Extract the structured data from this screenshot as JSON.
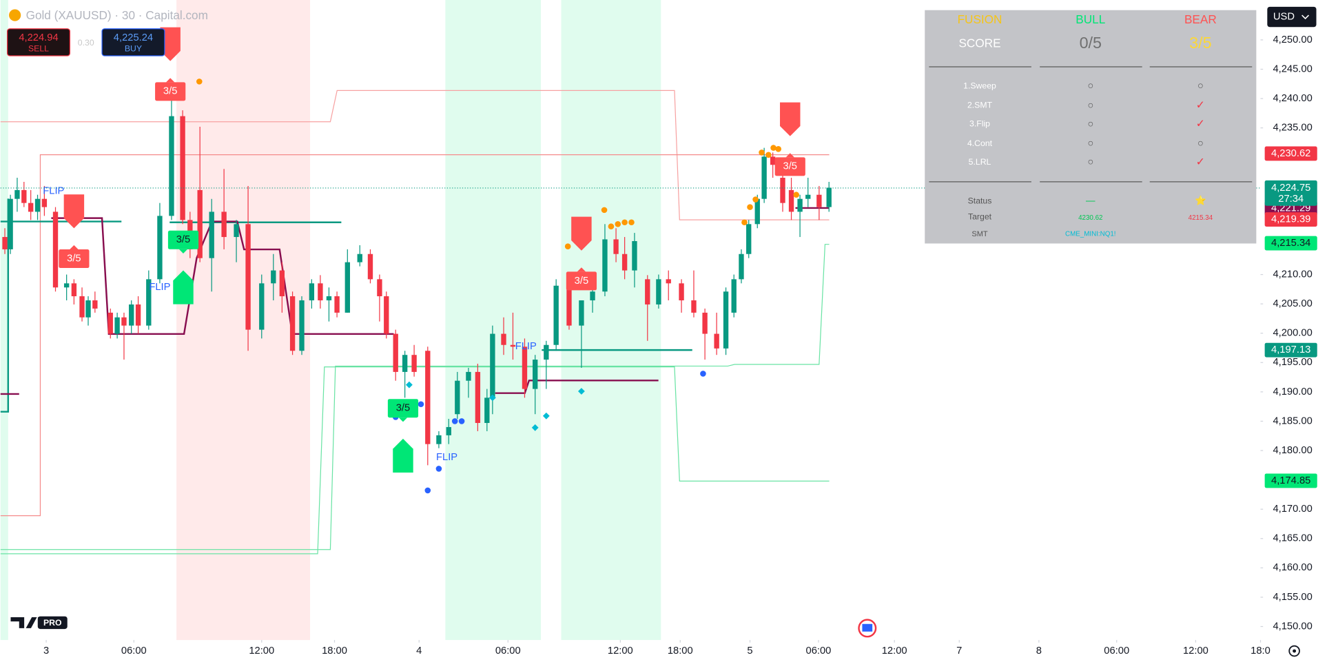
{
  "header": {
    "symbol": "Gold (XAUUSD) · 30 · Capital.com",
    "sell_price": "4,224.94",
    "sell": "SELL",
    "spread": "0.30",
    "buy_price": "4,225.24",
    "buy": "BUY",
    "currency": "USD",
    "logo": "PRO"
  },
  "chart_data": {
    "type": "candlestick",
    "x": [
      0.7,
      1.6,
      2.7,
      3.8,
      4.9,
      6.0,
      7.1,
      8.9,
      10.7,
      11.9,
      13.2,
      14.2,
      15.3,
      17.8,
      18.9,
      20.0,
      21.2,
      22.3,
      24.0,
      25.8,
      27.7,
      29.5,
      30.7,
      32.3,
      34.2,
      36.2,
      38.2,
      40.1,
      42.3,
      44.2,
      45.6,
      47.3,
      48.8,
      50.4,
      51.8,
      53.2,
      54.5,
      56.2,
      58.2,
      59.9,
      61.4,
      62.5,
      64.0,
      65.5,
      67.0,
      69.2,
      71.0,
      72.6,
      74.0,
      75.8,
      77.3,
      78.8,
      79.7,
      81.5,
      83.0,
      84.9,
      86.6,
      88.4,
      90.0,
      92.1,
      94.1,
      95.9,
      97.9,
      99.7,
      101.1,
      102.7,
      104.8,
      106.6,
      108.2,
      110.3,
      112.3,
      114.1,
      116.0,
      117.5,
      118.8,
      120.0,
      121.2,
      122.6,
      123.7,
      125.1,
      126.7,
      128.1,
      129.5,
      130.8,
      132.6,
      134.2
    ],
    "open": [
      4216.4,
      4214.3,
      4222.9,
      4224.4,
      4222.2,
      4220.7,
      4222.9,
      4220.7,
      4207.8,
      4208.5,
      4206.3,
      4202.7,
      4205.6,
      4203.5,
      4199.9,
      4202.7,
      4201.3,
      4204.9,
      4201.3,
      4209.2,
      4220.0,
      4237.0,
      4219.3,
      4224.4,
      4212.8,
      4220.7,
      4216.4,
      4218.6,
      4200.6,
      4208.5,
      4210.7,
      4206.3,
      4197.0,
      4205.6,
      4208.5,
      4205.6,
      4206.3,
      4203.5,
      4212.1,
      4213.5,
      4209.2,
      4206.3,
      4199.9,
      4193.4,
      4196.3,
      4197.0,
      4181.1,
      4182.6,
      4186.2,
      4191.9,
      4193.4,
      4184.7,
      4189.0,
      4199.9,
      4198.0,
      4197.7,
      4190.5,
      4195.5,
      4198.0,
      4208.1,
      4201.3,
      4205.6,
      4207.1,
      4216.0,
      4213.5,
      4210.7,
      4209.2,
      4204.9,
      4209.2,
      4208.5,
      4205.6,
      4203.5,
      4199.9,
      4197.4,
      4203.5,
      4209.2,
      4213.5,
      4218.6,
      4222.9,
      4230.1,
      4226.5,
      4224.4,
      4220.7,
      4222.9,
      4223.6,
      4221.5
    ],
    "high": [
      4217.9,
      4223.6,
      4226.5,
      4225.8,
      4224.4,
      4223.6,
      4225.1,
      4221.5,
      4210.0,
      4209.2,
      4207.8,
      4206.3,
      4207.1,
      4204.2,
      4203.5,
      4203.5,
      4205.6,
      4206.3,
      4210.7,
      4222.2,
      4240.9,
      4238.0,
      4220.7,
      4235.2,
      4222.9,
      4228.0,
      4219.3,
      4225.1,
      4210.0,
      4213.5,
      4212.1,
      4207.1,
      4206.3,
      4209.2,
      4209.9,
      4207.8,
      4207.1,
      4214.3,
      4215.0,
      4214.3,
      4210.0,
      4207.1,
      4200.6,
      4197.0,
      4198.0,
      4197.7,
      4183.3,
      4185.4,
      4193.4,
      4194.1,
      4194.8,
      4190.5,
      4201.3,
      4202.7,
      4203.5,
      4199.1,
      4196.3,
      4198.7,
      4209.2,
      4210.0,
      4205.6,
      4207.8,
      4218.6,
      4217.9,
      4216.4,
      4217.1,
      4209.9,
      4210.0,
      4210.7,
      4209.2,
      4210.7,
      4204.2,
      4203.5,
      4207.8,
      4210.0,
      4214.3,
      4219.3,
      4223.6,
      4231.6,
      4230.8,
      4227.2,
      4226.5,
      4223.6,
      4226.5,
      4225.1,
      4225.8
    ],
    "low": [
      4213.5,
      4213.5,
      4220.7,
      4221.5,
      4219.3,
      4219.3,
      4220.0,
      4207.1,
      4205.6,
      4204.9,
      4202.0,
      4201.3,
      4203.5,
      4199.1,
      4199.1,
      4195.5,
      4199.9,
      4199.9,
      4200.6,
      4208.5,
      4219.3,
      4218.6,
      4212.8,
      4212.1,
      4207.1,
      4214.3,
      4212.1,
      4197.0,
      4199.1,
      4205.6,
      4203.5,
      4196.3,
      4196.3,
      4204.2,
      4204.2,
      4202.0,
      4202.7,
      4203.5,
      4211.4,
      4208.5,
      4202.0,
      4199.1,
      4191.9,
      4189.0,
      4192.6,
      4177.5,
      4180.4,
      4181.1,
      4185.4,
      4189.0,
      4183.3,
      4183.3,
      4186.2,
      4196.3,
      4195.5,
      4189.0,
      4186.2,
      4190.5,
      4197.0,
      4200.6,
      4194.1,
      4203.5,
      4206.3,
      4212.1,
      4209.2,
      4207.8,
      4198.7,
      4204.2,
      4205.6,
      4203.5,
      4202.7,
      4195.5,
      4196.3,
      4196.3,
      4202.7,
      4208.5,
      4212.8,
      4217.9,
      4222.2,
      4226.5,
      4220.7,
      4219.3,
      4216.4,
      4221.5,
      4219.3,
      4220.7
    ],
    "close": [
      4214.3,
      4222.9,
      4224.4,
      4222.2,
      4220.7,
      4222.9,
      4221.5,
      4207.8,
      4208.5,
      4206.3,
      4202.7,
      4205.6,
      4204.2,
      4199.9,
      4202.7,
      4201.3,
      4204.9,
      4201.3,
      4209.2,
      4220.0,
      4237.0,
      4219.3,
      4214.3,
      4212.8,
      4220.7,
      4216.4,
      4218.6,
      4200.6,
      4208.5,
      4210.7,
      4206.3,
      4197.0,
      4205.6,
      4208.5,
      4205.6,
      4206.3,
      4203.5,
      4212.1,
      4213.5,
      4209.2,
      4206.3,
      4199.9,
      4193.4,
      4196.3,
      4193.4,
      4181.1,
      4182.6,
      4184.0,
      4191.9,
      4193.4,
      4184.7,
      4189.0,
      4199.9,
      4198.0,
      4197.7,
      4190.5,
      4195.5,
      4198.0,
      4208.1,
      4201.3,
      4205.6,
      4207.1,
      4216.0,
      4213.5,
      4210.7,
      4215.7,
      4204.9,
      4209.2,
      4208.5,
      4205.6,
      4203.5,
      4199.9,
      4197.4,
      4207.1,
      4209.2,
      4213.5,
      4218.6,
      4222.9,
      4230.1,
      4228.7,
      4222.2,
      4220.7,
      4222.9,
      4223.6,
      4221.5,
      4224.8
    ],
    "up_color": "#089981",
    "down_color": "#f23645",
    "xlim": [
      0,
      204.1
    ],
    "xticks": [
      {
        "value": 7.4,
        "label": "3"
      },
      {
        "value": 21.6,
        "label": "06:00"
      },
      {
        "value": 42.3,
        "label": "12:00"
      },
      {
        "value": 54.1,
        "label": "18:00"
      },
      {
        "value": 67.8,
        "label": "4"
      },
      {
        "value": 82.2,
        "label": "06:00"
      },
      {
        "value": 100.4,
        "label": "12:00"
      },
      {
        "value": 110.1,
        "label": "18:00"
      },
      {
        "value": 121.4,
        "label": "5"
      },
      {
        "value": 132.5,
        "label": "06:00"
      },
      {
        "value": 144.8,
        "label": "12:00"
      },
      {
        "value": 155.3,
        "label": "7"
      },
      {
        "value": 168.2,
        "label": "8"
      },
      {
        "value": 180.8,
        "label": "06:00"
      },
      {
        "value": 193.6,
        "label": "12:00"
      },
      {
        "value": 204.1,
        "label": "18:0"
      }
    ],
    "ylim": [
      4147.7,
      4256.8
    ],
    "yticks": [
      {
        "value": 4250,
        "label": "4,250.00"
      },
      {
        "value": 4245,
        "label": "4,245.00"
      },
      {
        "value": 4240,
        "label": "4,240.00"
      },
      {
        "value": 4235,
        "label": "4,235.00"
      },
      {
        "value": 4210,
        "label": "4,210.00"
      },
      {
        "value": 4205,
        "label": "4,205.00"
      },
      {
        "value": 4200,
        "label": "4,200.00"
      },
      {
        "value": 4195,
        "label": "4,195.00"
      },
      {
        "value": 4190,
        "label": "4,190.00"
      },
      {
        "value": 4185,
        "label": "4,185.00"
      },
      {
        "value": 4180,
        "label": "4,180.00"
      },
      {
        "value": 4170,
        "label": "4,170.00"
      },
      {
        "value": 4165,
        "label": "4,165.00"
      },
      {
        "value": 4160,
        "label": "4,160.00"
      },
      {
        "value": 4155,
        "label": "4,155.00"
      },
      {
        "value": 4150,
        "label": "4,150.00"
      }
    ],
    "grid": false,
    "last_price": {
      "value": 4224.75,
      "label": "4,224.75",
      "countdown": "27:34",
      "color": "#089981"
    },
    "price_tags": [
      {
        "value": 4230.62,
        "label": "4,230.62",
        "color": "#f23645",
        "text_color": "#ffffff"
      },
      {
        "value": 4221.29,
        "label": "4,221.29",
        "color": "#880e4f",
        "text_color": "#ffffff"
      },
      {
        "value": 4219.39,
        "label": "4,219.39",
        "color": "#f23645",
        "text_color": "#ffffff"
      },
      {
        "value": 4215.34,
        "label": "4,215.34",
        "color": "#00e676",
        "text_color": "#131722"
      },
      {
        "value": 4197.13,
        "label": "4,197.13",
        "color": "#089981",
        "text_color": "#ffffff"
      },
      {
        "value": 4174.85,
        "label": "4,174.85",
        "color": "#00e676",
        "text_color": "#131722"
      }
    ],
    "signals": [
      {
        "text": "3/5",
        "x": 27.5,
        "y": 4241.2,
        "color": "#ff5252",
        "direction": "down"
      },
      {
        "text": "3/5",
        "x": 11.9,
        "y": 4212.7,
        "color": "#ff5252",
        "direction": "down"
      },
      {
        "text": "3/5",
        "x": 94.1,
        "y": 4208.9,
        "color": "#ff5252",
        "direction": "down"
      },
      {
        "text": "3/5",
        "x": 127.9,
        "y": 4228.4,
        "color": "#ff5252",
        "direction": "down"
      },
      {
        "text": "3/5",
        "x": 29.6,
        "y": 4215.9,
        "color": "#00e676",
        "direction": "up"
      },
      {
        "text": "3/5",
        "x": 65.2,
        "y": 4187.2,
        "color": "#00e676",
        "direction": "up"
      }
    ],
    "flips": [
      {
        "text": "FLIP",
        "x": 8.6,
        "y": 4224.2,
        "color": "#2962ff"
      },
      {
        "text": "FLIP",
        "x": 25.8,
        "y": 4207.8,
        "color": "#2962ff"
      },
      {
        "text": "FLIP",
        "x": 72.3,
        "y": 4178.8,
        "color": "#2962ff"
      },
      {
        "text": "FLIP",
        "x": 85.1,
        "y": 4197.7,
        "color": "#2962ff"
      }
    ],
    "markers": [
      {
        "color": "#ff9800",
        "shape": "circle",
        "x": [
          32.2,
          91.9,
          97.8,
          98.9,
          100.0,
          101.1,
          102.2,
          120.5,
          121.4,
          122.3,
          123.3,
          124.4,
          125.2,
          126.0,
          128.9
        ],
        "y": [
          4242.9,
          4214.8,
          4221.0,
          4218.2,
          4218.6,
          4218.9,
          4218.9,
          4218.9,
          4221.5,
          4222.8,
          4230.8,
          4230.4,
          4231.6,
          4231.4,
          4223.6
        ]
      },
      {
        "color": "#2962ff",
        "shape": "circle",
        "x": [
          64.0,
          68.1,
          73.6,
          74.7,
          71.0,
          69.2,
          113.8
        ],
        "y": [
          4185.7,
          4187.9,
          4185.0,
          4185.0,
          4176.9,
          4173.2,
          4193.1
        ]
      },
      {
        "color": "#00bcd4",
        "shape": "diamond",
        "x": [
          66.2,
          79.7,
          86.6,
          88.4,
          94.1
        ],
        "y": [
          4191.2,
          4189.0,
          4183.9,
          4185.9,
          4190.1
        ]
      }
    ]
  },
  "panel": {
    "header": [
      "FUSION",
      "BULL",
      "BEAR"
    ],
    "score": [
      "SCORE",
      "0/5",
      "3/5"
    ],
    "rows": [
      [
        "1.Sweep",
        "○",
        "○"
      ],
      [
        "2.SMT",
        "○",
        "✓"
      ],
      [
        "3.Flip",
        "○",
        "✓"
      ],
      [
        "4.Cont",
        "○",
        "○"
      ],
      [
        "5.LRL",
        "○",
        "✓"
      ]
    ],
    "footer": [
      [
        "Status",
        "—",
        "⭐"
      ],
      [
        "Target",
        "4230.62",
        "4215.34"
      ],
      [
        "SMT",
        "CME_MINI:NQ1!"
      ]
    ]
  }
}
